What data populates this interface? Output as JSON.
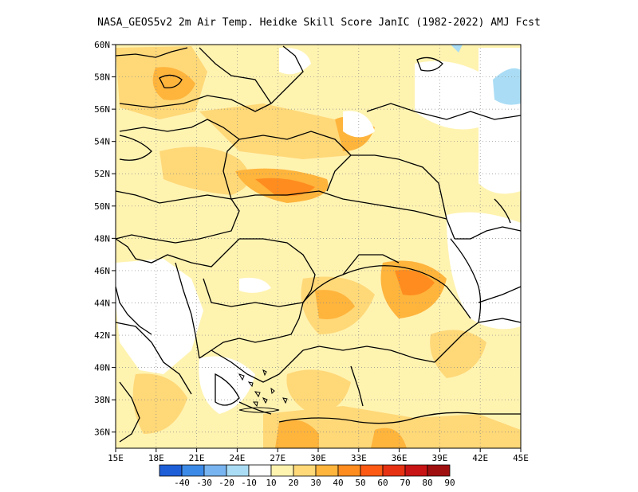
{
  "title": "NASA_GEOS5v2  2m Air Temp. Heidke Skill Score JanIC (1982-2022) AMJ Fcst",
  "map": {
    "lat_ticks": [
      "60N",
      "58N",
      "56N",
      "54N",
      "52N",
      "50N",
      "48N",
      "46N",
      "44N",
      "42N",
      "40N",
      "38N",
      "36N"
    ],
    "lon_ticks": [
      "15E",
      "18E",
      "21E",
      "24E",
      "27E",
      "30E",
      "33E",
      "36E",
      "39E",
      "42E",
      "45E"
    ],
    "lon_range": [
      15,
      45
    ],
    "lat_range": [
      35,
      60
    ],
    "grid": true
  },
  "colorbar": {
    "labels": [
      "-40",
      "-30",
      "-20",
      "-10",
      "10",
      "20",
      "30",
      "40",
      "50",
      "60",
      "70",
      "80",
      "90"
    ],
    "colors": [
      "#1e5fd8",
      "#3c8ae8",
      "#78b4f0",
      "#aaddf5",
      "#ffffff",
      "#fff3b0",
      "#ffd878",
      "#ffb43c",
      "#ff8c1e",
      "#ff5a14",
      "#e63212",
      "#c81414",
      "#a00f0f"
    ]
  }
}
